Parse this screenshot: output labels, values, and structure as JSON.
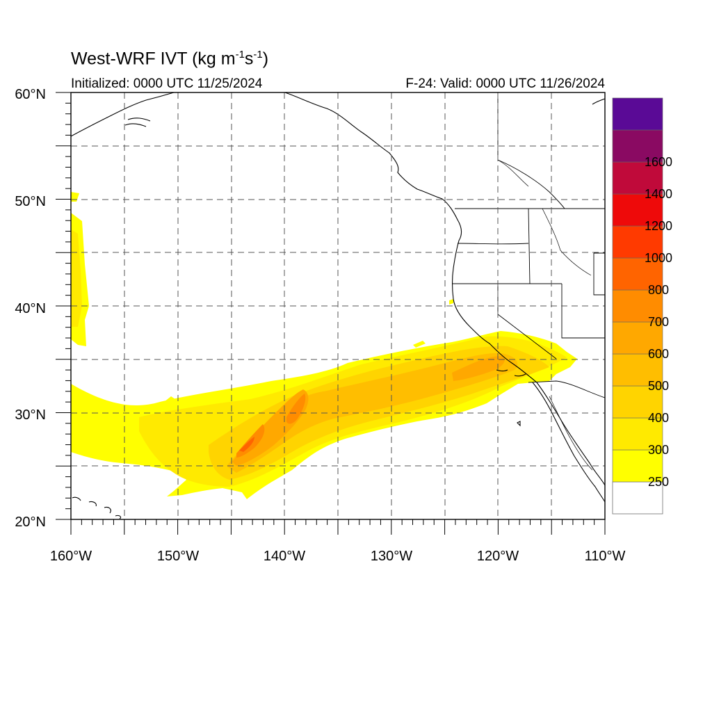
{
  "title": {
    "main": "West-WRF IVT (kg m",
    "sup1": "-1",
    "mid": "s",
    "sup2": "-1",
    "end": ")"
  },
  "subtitle_left": "Initialized: 0000 UTC 11/25/2024",
  "subtitle_right": "F-24: Valid: 0000 UTC 11/26/2024",
  "map": {
    "lon_range": [
      -160,
      -110
    ],
    "lat_range": [
      20,
      60
    ],
    "lon_ticks": [
      "160°W",
      "150°W",
      "140°W",
      "130°W",
      "120°W",
      "110°W"
    ],
    "lat_ticks": [
      "20°N",
      "30°N",
      "40°N",
      "50°N",
      "60°N"
    ],
    "grid": "dashed, every 5 degrees"
  },
  "colorbar": {
    "labels": [
      "250",
      "300",
      "400",
      "500",
      "600",
      "700",
      "800",
      "1000",
      "1200",
      "1400",
      "1600"
    ],
    "colors": [
      "#ffff00",
      "#ffea00",
      "#ffd400",
      "#ffbe00",
      "#ffa800",
      "#ff8c00",
      "#ff6400",
      "#ff3a00",
      "#ee0a0a",
      "#c00a3a",
      "#8a0a62",
      "#5a0a96"
    ]
  }
}
